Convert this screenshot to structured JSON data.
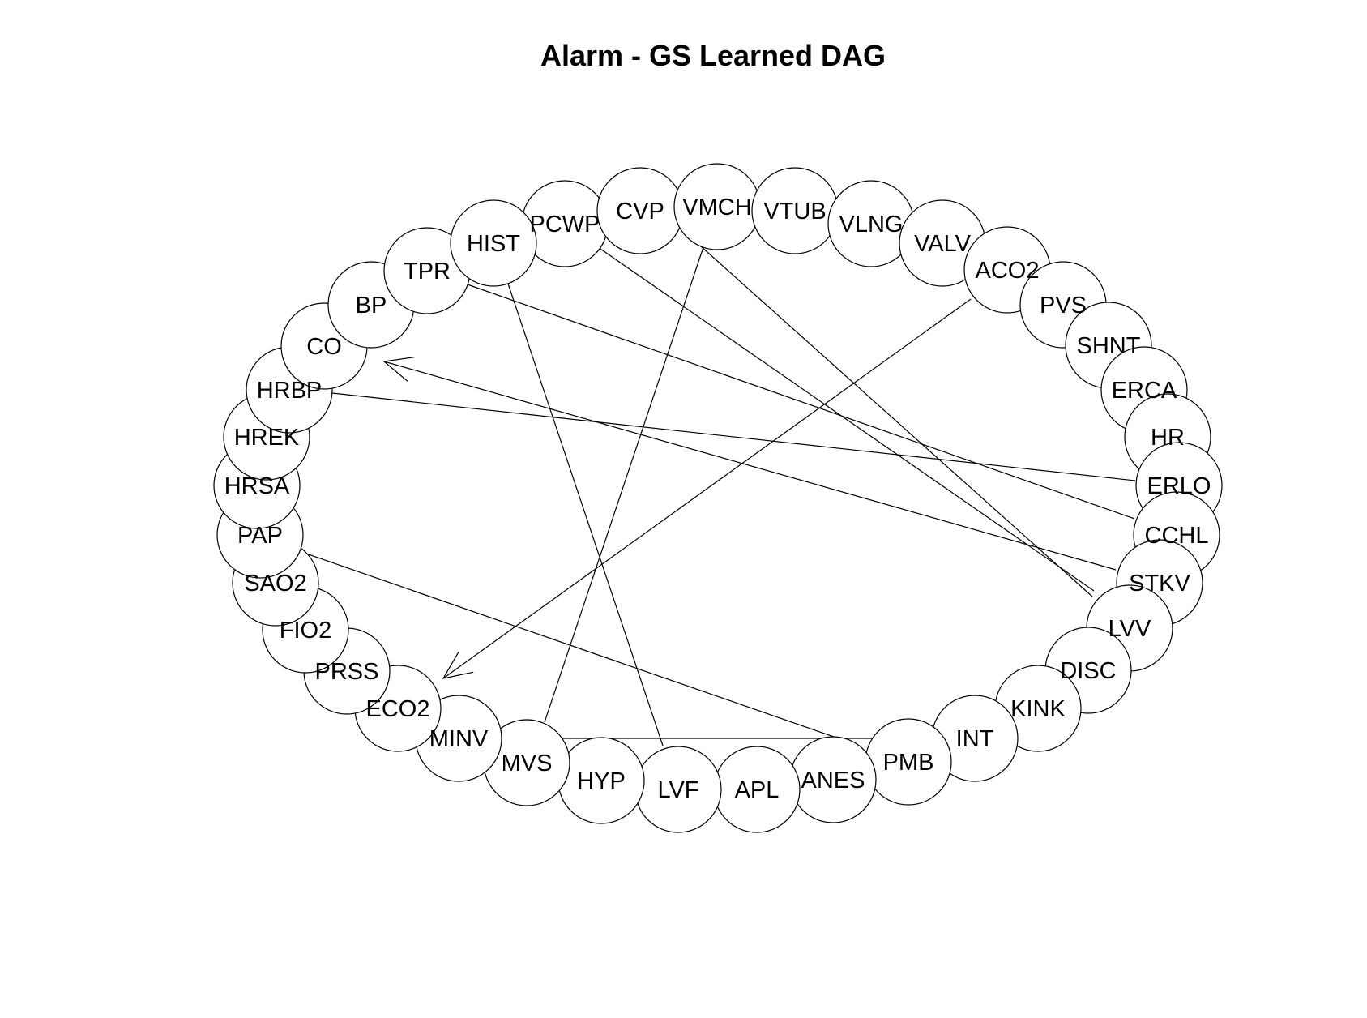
{
  "title": "Alarm - GS Learned DAG",
  "nodes": [
    "PCWP",
    "CVP",
    "VMCH",
    "VTUB",
    "VLNG",
    "VALV",
    "ACO2",
    "PVS",
    "SHNT",
    "ERCA",
    "HR",
    "ERLO",
    "CCHL",
    "STKV",
    "LVV",
    "DISC",
    "KINK",
    "INT",
    "PMB",
    "ANES",
    "APL",
    "LVF",
    "HYP",
    "MVS",
    "MINV",
    "ECO2",
    "PRSS",
    "FIO2",
    "SAO2",
    "PAP",
    "HRSA",
    "HREK",
    "HRBP",
    "CO",
    "BP",
    "TPR",
    "HIST"
  ],
  "edges": [
    {
      "from": "ACO2",
      "to": "ECO2",
      "directed": true
    },
    {
      "from": "STKV",
      "to": "CO",
      "directed": true
    },
    {
      "from": "HRBP",
      "to": "ERLO",
      "directed": false
    },
    {
      "from": "TPR",
      "to": "CCHL",
      "directed": false
    },
    {
      "from": "PCWP",
      "to": "LVV",
      "directed": false
    },
    {
      "from": "VMCH",
      "to": "LVV",
      "directed": false
    },
    {
      "from": "VMCH",
      "to": "MVS",
      "directed": false
    },
    {
      "from": "HIST",
      "to": "LVF",
      "directed": false
    },
    {
      "from": "PAP",
      "to": "ANES",
      "directed": false
    },
    {
      "from": "MVS",
      "to": "PMB",
      "directed": false
    }
  ],
  "colors": {
    "stroke": "#000000",
    "node_fill": "#ffffff",
    "background": "#ffffff"
  }
}
